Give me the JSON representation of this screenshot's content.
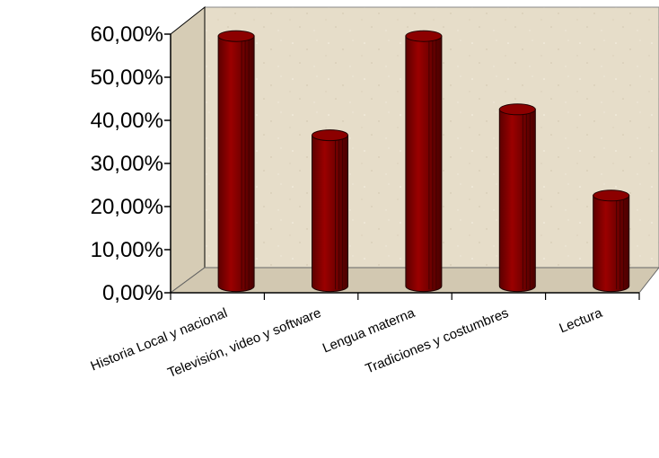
{
  "chart_data": {
    "type": "bar",
    "style": "3d-cylinder",
    "categories": [
      "Historia Local y nacional",
      "Televisión, video y software",
      "Lengua materna",
      "Tradiciones y costumbres",
      "Lectura"
    ],
    "values": [
      58,
      35,
      58,
      41,
      21
    ],
    "value_format": "percent",
    "yticks": [
      "0,00%",
      "10,00%",
      "20,00%",
      "30,00%",
      "40,00%",
      "50,00%",
      "60,00%"
    ],
    "ylim": [
      0,
      60
    ],
    "title": "",
    "xlabel": "",
    "ylabel": "",
    "grid": false,
    "legend": "none",
    "colors": {
      "bar": "#7a0000",
      "bar_highlight": "#a80000",
      "bar_top": "#8c0000",
      "wall": "#e6ddc9",
      "floor": "#d8ceb8",
      "axis": "#000000"
    }
  }
}
